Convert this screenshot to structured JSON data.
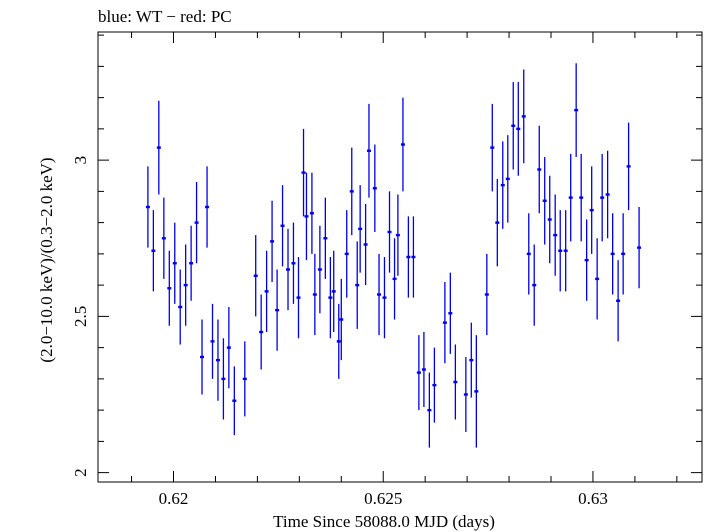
{
  "chart_data": {
    "type": "scatter",
    "title": "blue: WT − red: PC",
    "xlabel": "Time Since 58088.0 MJD (days)",
    "ylabel": "(2.0−10.0 keV)/(0.3−2.0 keV)",
    "xlim": [
      0.6182,
      0.6326
    ],
    "ylim": [
      1.97,
      3.41
    ],
    "xticks": [
      {
        "value": 0.62,
        "label": "0.62"
      },
      {
        "value": 0.625,
        "label": "0.625"
      },
      {
        "value": 0.63,
        "label": "0.63"
      }
    ],
    "yticks": [
      {
        "value": 2,
        "label": "2"
      },
      {
        "value": 2.5,
        "label": "2.5"
      },
      {
        "value": 3,
        "label": "3"
      }
    ],
    "grid": false,
    "colors": {
      "WT": "#0000ee"
    },
    "series": [
      {
        "name": "WT",
        "color": "#0000ee",
        "points": [
          [
            0.61939,
            2.85,
            0.13
          ],
          [
            0.61952,
            2.71,
            0.13
          ],
          [
            0.61965,
            3.04,
            0.15
          ],
          [
            0.61977,
            2.75,
            0.13
          ],
          [
            0.6199,
            2.59,
            0.12
          ],
          [
            0.62003,
            2.67,
            0.13
          ],
          [
            0.62016,
            2.53,
            0.12
          ],
          [
            0.62029,
            2.6,
            0.13
          ],
          [
            0.62042,
            2.67,
            0.12
          ],
          [
            0.62055,
            2.8,
            0.13
          ],
          [
            0.6208,
            2.85,
            0.13
          ],
          [
            0.62068,
            2.37,
            0.12
          ],
          [
            0.62093,
            2.42,
            0.12
          ],
          [
            0.62106,
            2.36,
            0.13
          ],
          [
            0.62119,
            2.3,
            0.13
          ],
          [
            0.62132,
            2.4,
            0.13
          ],
          [
            0.62145,
            2.23,
            0.11
          ],
          [
            0.6217,
            2.3,
            0.12
          ],
          [
            0.62196,
            2.63,
            0.13
          ],
          [
            0.62209,
            2.45,
            0.12
          ],
          [
            0.62222,
            2.58,
            0.13
          ],
          [
            0.62235,
            2.74,
            0.13
          ],
          [
            0.62247,
            2.52,
            0.13
          ],
          [
            0.6226,
            2.79,
            0.13
          ],
          [
            0.62273,
            2.65,
            0.13
          ],
          [
            0.62286,
            2.67,
            0.13
          ],
          [
            0.62298,
            2.56,
            0.13
          ],
          [
            0.6231,
            2.96,
            0.14
          ],
          [
            0.62317,
            2.82,
            0.14
          ],
          [
            0.6233,
            2.83,
            0.13
          ],
          [
            0.62337,
            2.57,
            0.13
          ],
          [
            0.62349,
            2.65,
            0.14
          ],
          [
            0.62362,
            2.75,
            0.13
          ],
          [
            0.62374,
            2.56,
            0.13
          ],
          [
            0.62382,
            2.58,
            0.13
          ],
          [
            0.62394,
            2.42,
            0.12
          ],
          [
            0.624,
            2.49,
            0.13
          ],
          [
            0.62413,
            2.7,
            0.14
          ],
          [
            0.62425,
            2.9,
            0.14
          ],
          [
            0.62438,
            2.6,
            0.14
          ],
          [
            0.62445,
            2.78,
            0.14
          ],
          [
            0.62458,
            2.73,
            0.13
          ],
          [
            0.62466,
            3.03,
            0.15
          ],
          [
            0.6248,
            2.91,
            0.14
          ],
          [
            0.6249,
            2.57,
            0.13
          ],
          [
            0.62503,
            2.56,
            0.13
          ],
          [
            0.62515,
            2.77,
            0.13
          ],
          [
            0.62527,
            2.62,
            0.13
          ],
          [
            0.62535,
            2.76,
            0.13
          ],
          [
            0.62547,
            3.05,
            0.15
          ],
          [
            0.6256,
            2.69,
            0.13
          ],
          [
            0.62572,
            2.69,
            0.13
          ],
          [
            0.62585,
            2.32,
            0.12
          ],
          [
            0.62597,
            2.33,
            0.12
          ],
          [
            0.6261,
            2.2,
            0.12
          ],
          [
            0.62622,
            2.28,
            0.12
          ],
          [
            0.62647,
            2.48,
            0.13
          ],
          [
            0.6266,
            2.51,
            0.13
          ],
          [
            0.62672,
            2.29,
            0.12
          ],
          [
            0.62697,
            2.25,
            0.12
          ],
          [
            0.6271,
            2.36,
            0.12
          ],
          [
            0.62722,
            2.26,
            0.18
          ],
          [
            0.62747,
            2.57,
            0.13
          ],
          [
            0.6276,
            3.04,
            0.14
          ],
          [
            0.62772,
            2.8,
            0.14
          ],
          [
            0.62785,
            2.92,
            0.14
          ],
          [
            0.62797,
            2.94,
            0.14
          ],
          [
            0.6281,
            3.11,
            0.14
          ],
          [
            0.62822,
            3.1,
            0.15
          ],
          [
            0.62835,
            3.14,
            0.15
          ],
          [
            0.62847,
            2.7,
            0.13
          ],
          [
            0.6286,
            2.6,
            0.13
          ],
          [
            0.62872,
            2.97,
            0.14
          ],
          [
            0.62885,
            2.87,
            0.14
          ],
          [
            0.62897,
            2.81,
            0.14
          ],
          [
            0.6291,
            2.76,
            0.13
          ],
          [
            0.62922,
            2.71,
            0.13
          ],
          [
            0.62935,
            2.71,
            0.13
          ],
          [
            0.62947,
            2.88,
            0.14
          ],
          [
            0.6296,
            3.16,
            0.15
          ],
          [
            0.62972,
            2.88,
            0.14
          ],
          [
            0.62985,
            2.68,
            0.13
          ],
          [
            0.62997,
            2.84,
            0.14
          ],
          [
            0.6301,
            2.62,
            0.13
          ],
          [
            0.63022,
            2.88,
            0.14
          ],
          [
            0.63035,
            2.89,
            0.14
          ],
          [
            0.63047,
            2.7,
            0.13
          ],
          [
            0.6306,
            2.55,
            0.13
          ],
          [
            0.63072,
            2.7,
            0.13
          ],
          [
            0.63085,
            2.98,
            0.14
          ],
          [
            0.6311,
            2.72,
            0.13
          ]
        ]
      }
    ]
  }
}
